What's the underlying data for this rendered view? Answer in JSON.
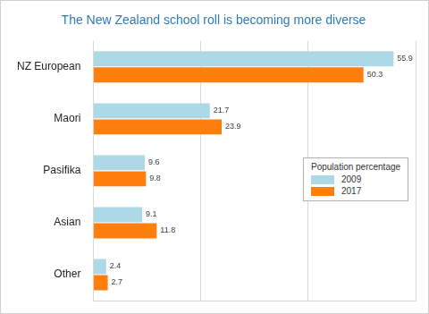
{
  "chart_data": {
    "type": "bar",
    "orientation": "horizontal",
    "title": "The New Zealand school roll is becoming more diverse",
    "categories": [
      "NZ European",
      "Maori",
      "Pasifika",
      "Asian",
      "Other"
    ],
    "series": [
      {
        "name": "2009",
        "color": "#add8e6",
        "values": [
          55.9,
          21.7,
          9.6,
          9.1,
          2.4
        ]
      },
      {
        "name": "2017",
        "color": "#ff7f0e",
        "values": [
          50.3,
          23.9,
          9.8,
          11.8,
          2.7
        ]
      }
    ],
    "legend_title": "Population percentage",
    "legend": "right",
    "xlim": [
      0,
      60
    ],
    "xticks": [
      0,
      20,
      40,
      60
    ],
    "grid": true,
    "data_labels": true,
    "tick_labels": "y"
  }
}
